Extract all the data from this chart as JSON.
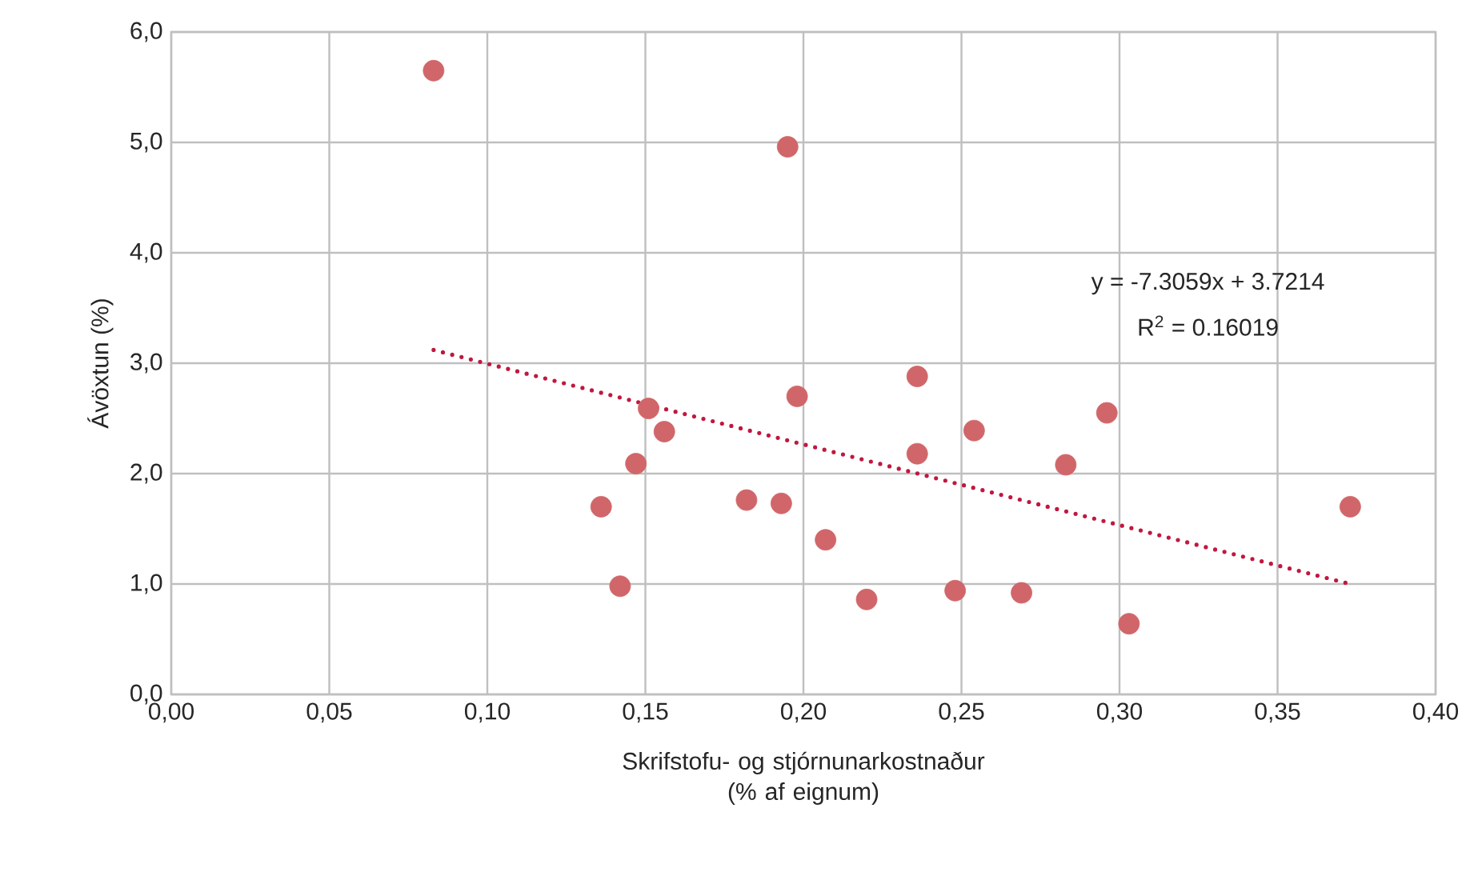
{
  "chart_data": {
    "type": "scatter",
    "xlabel": "Skrifstofu- og stjórnunarkostnaður (% af eignum)",
    "ylabel": "Ávöxtun (%)",
    "annotations": [
      "y = -7.3059x + 3.7214",
      "R$^{2}$ = 0.16019"
    ],
    "xlim": [
      0,
      0.4
    ],
    "ylim": [
      0,
      6
    ],
    "xticks": [
      {
        "value": 0,
        "label": "0,00"
      },
      {
        "value": 0.05,
        "label": "0,05"
      },
      {
        "value": 0.1,
        "label": "0,10"
      },
      {
        "value": 0.15,
        "label": "0,15"
      },
      {
        "value": 0.2,
        "label": "0,20"
      },
      {
        "value": 0.25,
        "label": "0,25"
      },
      {
        "value": 0.3,
        "label": "0,30"
      },
      {
        "value": 0.35,
        "label": "0,35"
      },
      {
        "value": 0.4,
        "label": "0,40"
      }
    ],
    "yticks": [
      {
        "value": 0,
        "label": "0,0"
      },
      {
        "value": 1,
        "label": "1,0"
      },
      {
        "value": 2,
        "label": "2,0"
      },
      {
        "value": 3,
        "label": "3,0"
      },
      {
        "value": 4,
        "label": "4,0"
      },
      {
        "value": 5,
        "label": "5,0"
      },
      {
        "value": 6,
        "label": "6,0"
      }
    ],
    "grid": true,
    "series": [
      {
        "type": "scatter",
        "color": "#d06669",
        "marker": "circle",
        "x": [
          0.083,
          0.195,
          0.151,
          0.156,
          0.147,
          0.136,
          0.142,
          0.198,
          0.182,
          0.193,
          0.207,
          0.22,
          0.236,
          0.236,
          0.254,
          0.248,
          0.269,
          0.283,
          0.296,
          0.303,
          0.373
        ],
        "values": [
          5.65,
          4.96,
          2.59,
          2.38,
          2.09,
          1.7,
          0.98,
          2.7,
          1.76,
          1.73,
          1.4,
          0.86,
          2.88,
          2.18,
          2.39,
          0.94,
          0.92,
          2.08,
          2.55,
          0.64,
          1.7
        ]
      },
      {
        "type": "line",
        "color": "#c0183f",
        "line_style": "dotted",
        "marker": "none",
        "x": [
          0.083,
          0.373
        ],
        "values": [
          3.12,
          1.0
        ]
      }
    ]
  }
}
